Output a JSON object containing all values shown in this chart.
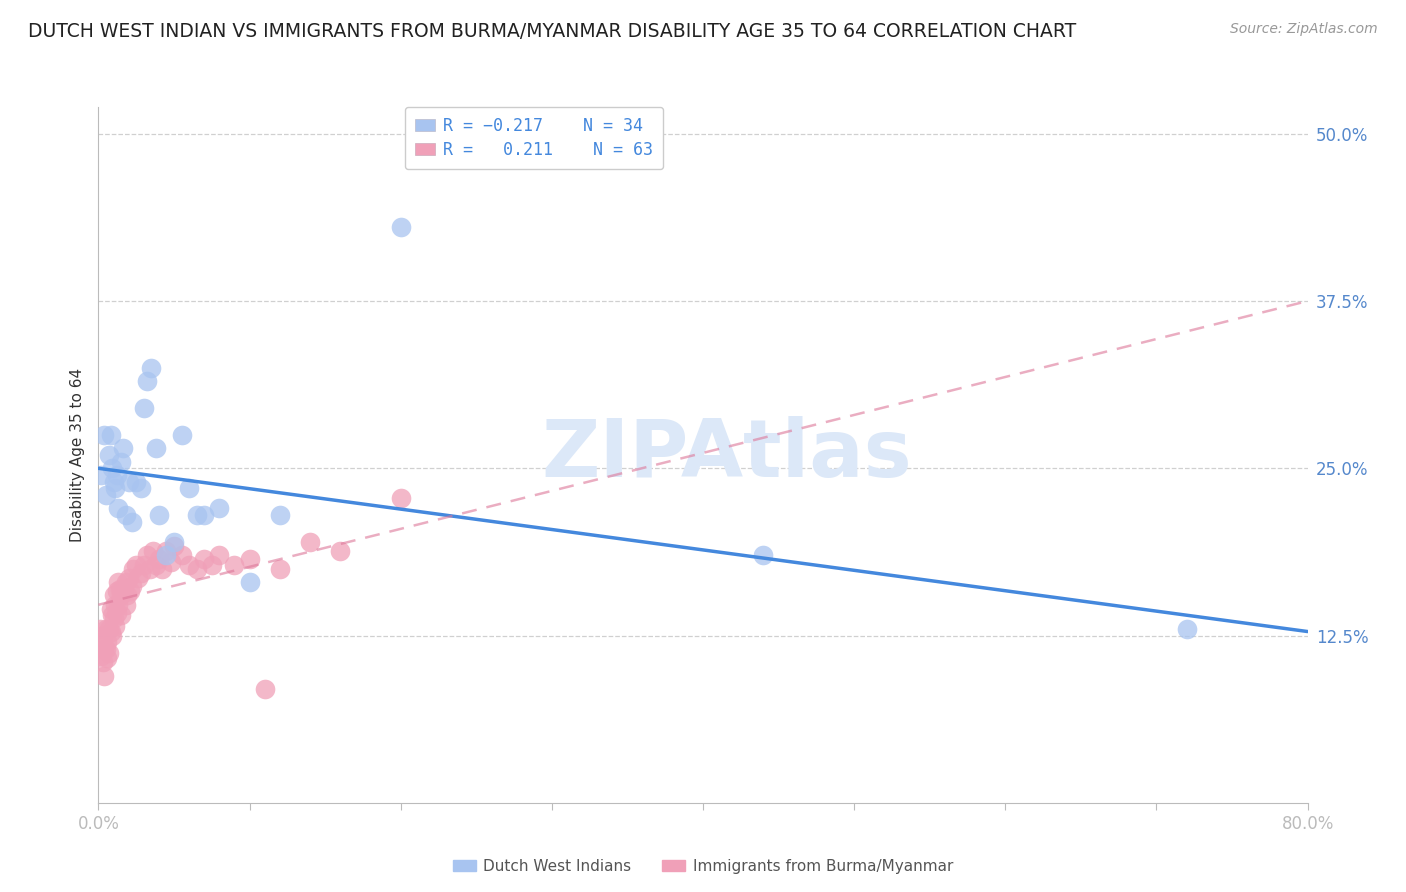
{
  "title": "DUTCH WEST INDIAN VS IMMIGRANTS FROM BURMA/MYANMAR DISABILITY AGE 35 TO 64 CORRELATION CHART",
  "source": "Source: ZipAtlas.com",
  "ylabel": "Disability Age 35 to 64",
  "ytick_labels": [
    "50.0%",
    "37.5%",
    "25.0%",
    "12.5%"
  ],
  "ytick_values": [
    0.5,
    0.375,
    0.25,
    0.125
  ],
  "xtick_values": [
    0.0,
    0.1,
    0.2,
    0.3,
    0.4,
    0.5,
    0.6,
    0.7,
    0.8
  ],
  "xlim": [
    0.0,
    0.8
  ],
  "ylim": [
    0.0,
    0.52
  ],
  "series_blue": {
    "name": "Dutch West Indians",
    "color": "#a8c4f0",
    "R": -0.217,
    "N": 34,
    "x": [
      0.002,
      0.004,
      0.005,
      0.007,
      0.008,
      0.009,
      0.01,
      0.011,
      0.012,
      0.013,
      0.015,
      0.016,
      0.018,
      0.02,
      0.022,
      0.025,
      0.028,
      0.03,
      0.032,
      0.035,
      0.038,
      0.04,
      0.045,
      0.05,
      0.055,
      0.06,
      0.065,
      0.07,
      0.08,
      0.1,
      0.12,
      0.2,
      0.44,
      0.72
    ],
    "y": [
      0.245,
      0.275,
      0.23,
      0.26,
      0.275,
      0.25,
      0.24,
      0.235,
      0.245,
      0.22,
      0.255,
      0.265,
      0.215,
      0.24,
      0.21,
      0.24,
      0.235,
      0.295,
      0.315,
      0.325,
      0.265,
      0.215,
      0.185,
      0.195,
      0.275,
      0.235,
      0.215,
      0.215,
      0.22,
      0.165,
      0.215,
      0.43,
      0.185,
      0.13
    ]
  },
  "series_pink": {
    "name": "Immigrants from Burma/Myanmar",
    "color": "#f0a0b8",
    "R": 0.211,
    "N": 63,
    "x": [
      0.001,
      0.002,
      0.002,
      0.003,
      0.003,
      0.004,
      0.004,
      0.005,
      0.005,
      0.006,
      0.006,
      0.007,
      0.007,
      0.008,
      0.008,
      0.009,
      0.009,
      0.01,
      0.01,
      0.011,
      0.011,
      0.012,
      0.012,
      0.013,
      0.013,
      0.014,
      0.015,
      0.015,
      0.016,
      0.017,
      0.018,
      0.018,
      0.019,
      0.02,
      0.021,
      0.022,
      0.023,
      0.025,
      0.026,
      0.028,
      0.03,
      0.032,
      0.034,
      0.036,
      0.038,
      0.04,
      0.042,
      0.045,
      0.048,
      0.05,
      0.055,
      0.06,
      0.065,
      0.07,
      0.075,
      0.08,
      0.09,
      0.1,
      0.11,
      0.12,
      0.14,
      0.16,
      0.2
    ],
    "y": [
      0.13,
      0.125,
      0.11,
      0.12,
      0.105,
      0.115,
      0.095,
      0.13,
      0.115,
      0.12,
      0.108,
      0.13,
      0.112,
      0.145,
      0.128,
      0.14,
      0.125,
      0.155,
      0.138,
      0.148,
      0.132,
      0.158,
      0.142,
      0.165,
      0.148,
      0.16,
      0.155,
      0.14,
      0.16,
      0.158,
      0.165,
      0.148,
      0.155,
      0.168,
      0.158,
      0.162,
      0.175,
      0.178,
      0.168,
      0.172,
      0.178,
      0.185,
      0.175,
      0.188,
      0.178,
      0.182,
      0.175,
      0.188,
      0.18,
      0.192,
      0.185,
      0.178,
      0.175,
      0.182,
      0.178,
      0.185,
      0.178,
      0.182,
      0.085,
      0.175,
      0.195,
      0.188,
      0.228
    ]
  },
  "blue_line": {
    "x0": 0.0,
    "x1": 0.8,
    "y0": 0.25,
    "y1": 0.128
  },
  "pink_line": {
    "x0": 0.0,
    "x1": 0.8,
    "y0": 0.148,
    "y1": 0.375
  },
  "watermark": "ZIPAtlas",
  "watermark_color": "#dce8f8",
  "bg_color": "#ffffff",
  "grid_color": "#d0d0d0",
  "axis_color": "#bbbbbb",
  "tick_color": "#5588cc",
  "title_color": "#222222",
  "title_fontsize": 13.5,
  "source_fontsize": 10,
  "ylabel_fontsize": 11,
  "tick_fontsize": 12
}
